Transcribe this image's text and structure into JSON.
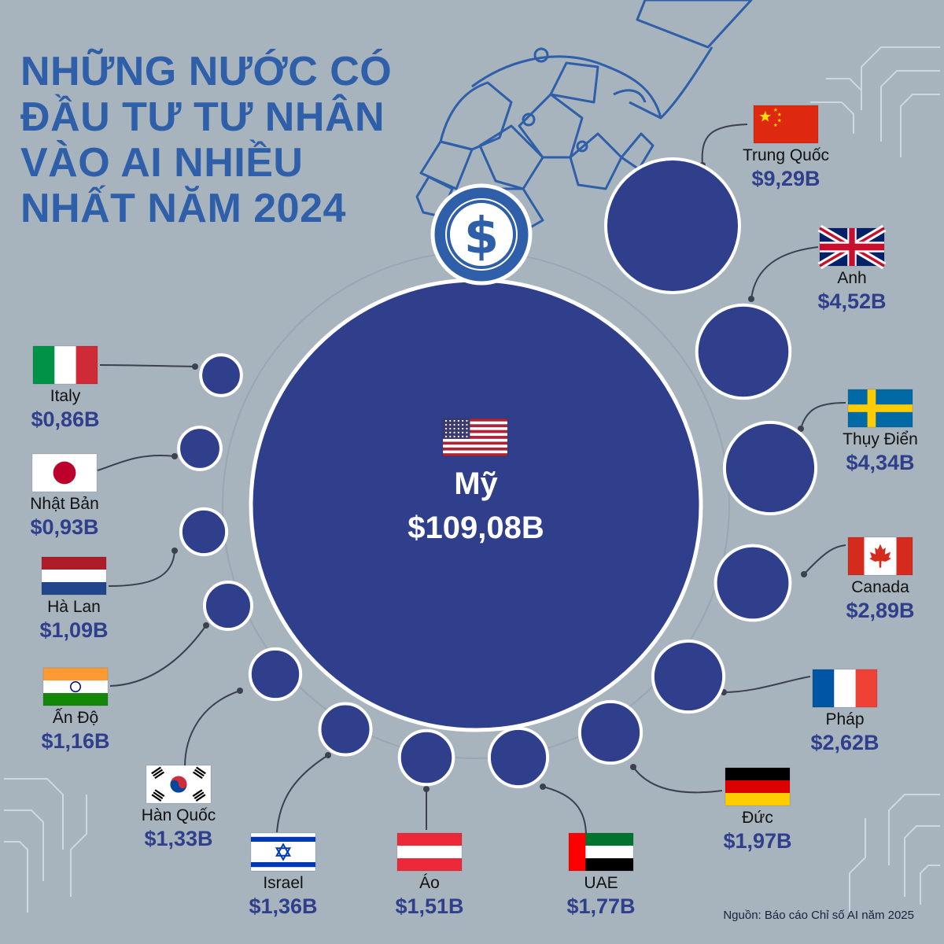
{
  "colors": {
    "background": "#a7b3bd",
    "bubble": "#2f3f8b",
    "bubble_border": "#ffffff",
    "title": "#2e5fa8",
    "value": "#2f3f8b",
    "label": "#111111",
    "connector": "#3b4150"
  },
  "title_lines": [
    "NHỮNG NƯỚC CÓ",
    "ĐẦU TƯ TƯ NHÂN",
    "VÀO AI NHIỀU",
    "NHẤT NĂM 2024"
  ],
  "dollar_icon": "dollar-icon",
  "decoration_icon": "robot-hand-icon",
  "source": "Nguồn: Báo cáo Chỉ số AI năm 2025",
  "chart_data": {
    "type": "bubble",
    "title": "NHỮNG NƯỚC CÓ ĐẦU TƯ TƯ NHÂN VÀO AI NHIỀU NHẤT NĂM 2024",
    "unit": "B USD",
    "categories": [
      "Mỹ",
      "Trung Quốc",
      "Anh",
      "Thụy Điển",
      "Canada",
      "Pháp",
      "Đức",
      "UAE",
      "Áo",
      "Israel",
      "Hàn Quốc",
      "Ấn Độ",
      "Hà Lan",
      "Nhật Bản",
      "Italy"
    ],
    "values": [
      109.08,
      9.29,
      4.52,
      4.34,
      2.89,
      2.62,
      1.97,
      1.77,
      1.51,
      1.36,
      1.33,
      1.16,
      1.09,
      0.93,
      0.86
    ],
    "value_labels": [
      "$109,08B",
      "$9,29B",
      "$4,52B",
      "$4,34B",
      "$2,89B",
      "$2,62B",
      "$1,97B",
      "$1,77B",
      "$1,51B",
      "$1,36B",
      "$1,33B",
      "$1,16B",
      "$1,09B",
      "$0,93B",
      "$0,86B"
    ],
    "flags": [
      "us-flag-icon",
      "cn-flag-icon",
      "gb-flag-icon",
      "se-flag-icon",
      "ca-flag-icon",
      "fr-flag-icon",
      "de-flag-icon",
      "ae-flag-icon",
      "at-flag-icon",
      "il-flag-icon",
      "kr-flag-icon",
      "in-flag-icon",
      "nl-flag-icon",
      "jp-flag-icon",
      "it-flag-icon"
    ]
  }
}
